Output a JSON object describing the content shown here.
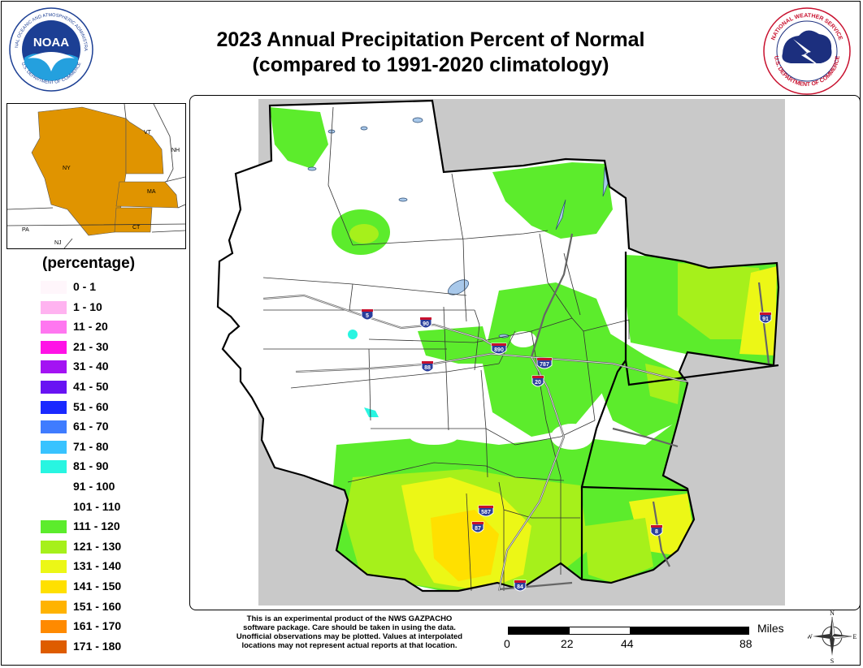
{
  "title": {
    "line1": "2023 Annual Precipitation Percent of Normal",
    "line2": "(compared to 1991-2020 climatology)"
  },
  "logos": {
    "noaa": {
      "center": "NOAA",
      "ring_top": "NATIONAL OCEANIC AND ATMOSPHERIC ADMINISTRATION",
      "ring_bottom": "U.S. DEPARTMENT OF COMMERCE"
    },
    "nws": {
      "ring_top": "NATIONAL WEATHER SERVICE",
      "ring_bottom": "U.S. DEPARTMENT OF COMMERCE"
    }
  },
  "inset": {
    "states": [
      {
        "label": "NY",
        "highlighted": true
      },
      {
        "label": "VT",
        "highlighted": true
      },
      {
        "label": "NH",
        "highlighted": false
      },
      {
        "label": "MA",
        "highlighted": true
      },
      {
        "label": "CT",
        "highlighted": true
      },
      {
        "label": "PA",
        "highlighted": false
      },
      {
        "label": "NJ",
        "highlighted": false
      }
    ],
    "highlight_color": "#e09400"
  },
  "legend": {
    "title": "(percentage)",
    "items": [
      {
        "label": "0 - 1",
        "color": "#fff6fb"
      },
      {
        "label": "1 - 10",
        "color": "#ffb3f0"
      },
      {
        "label": "11 - 20",
        "color": "#ff77f0"
      },
      {
        "label": "21 - 30",
        "color": "#ff12e6"
      },
      {
        "label": "31 - 40",
        "color": "#a313f3"
      },
      {
        "label": "41 - 50",
        "color": "#6813f3"
      },
      {
        "label": "51 - 60",
        "color": "#1a29ff"
      },
      {
        "label": "61 - 70",
        "color": "#3f7cff"
      },
      {
        "label": "71 - 80",
        "color": "#38c3ff"
      },
      {
        "label": "81 - 90",
        "color": "#28f5e1"
      },
      {
        "label": "91 - 100",
        "color": "#ffffff"
      },
      {
        "label": "101 - 110",
        "color": "#ffffff"
      },
      {
        "label": "111 - 120",
        "color": "#5cec2c"
      },
      {
        "label": "121 - 130",
        "color": "#a6f01b"
      },
      {
        "label": "131 - 140",
        "color": "#ecf716"
      },
      {
        "label": "141 - 150",
        "color": "#ffe000"
      },
      {
        "label": "151 - 160",
        "color": "#ffb300"
      },
      {
        "label": "161 - 170",
        "color": "#ff8a00"
      },
      {
        "label": "171 - 180",
        "color": "#de5c00"
      }
    ]
  },
  "map": {
    "background_color": "#c9c9c9",
    "interstates": [
      "5",
      "90",
      "890",
      "88",
      "787",
      "20",
      "587",
      "87",
      "84",
      "91",
      "8"
    ]
  },
  "disclaimer": [
    "This is an experimental product of the NWS GAZPACHO",
    "software package. Care should be taken in using the data.",
    "Unofficial observations may be plotted. Values at interpolated",
    "locations may not represent actual reports at that location."
  ],
  "scale_bar": {
    "units": "Miles",
    "ticks": [
      "0",
      "22",
      "44",
      "88"
    ]
  },
  "compass": {
    "n": "N",
    "s": "S",
    "e": "E",
    "w": "W"
  }
}
